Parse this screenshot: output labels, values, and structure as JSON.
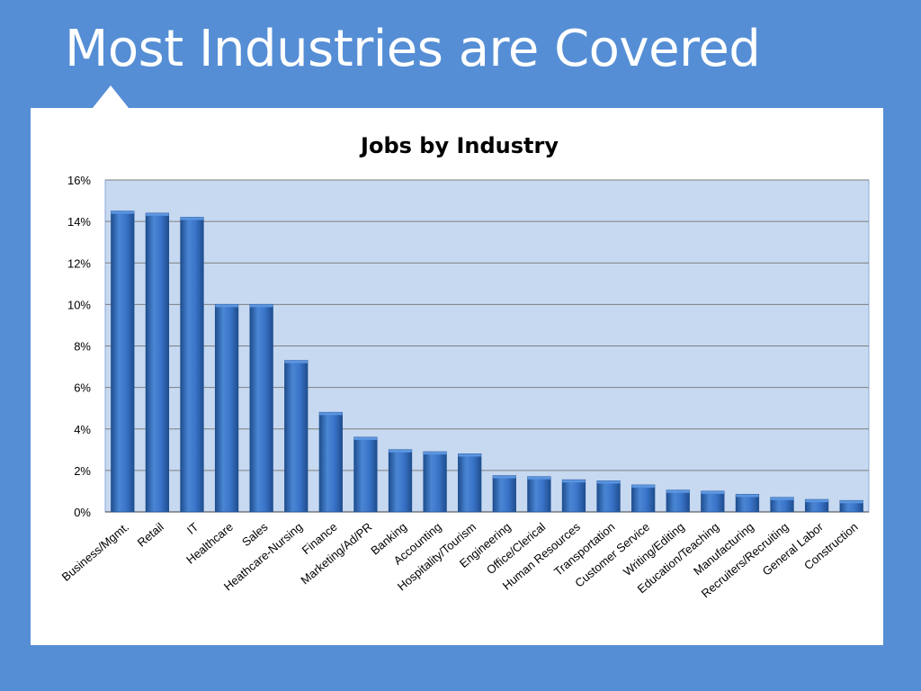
{
  "slide": {
    "title": "Most Industries are Covered"
  },
  "colors": {
    "background": "#558ed5",
    "plot_area": "#c6d9f1",
    "bar": "#3a74c9",
    "bar_dark": "#1f4e8f",
    "grid": "#7f7f7f"
  },
  "chart_data": {
    "type": "bar",
    "title": "Jobs by Industry",
    "xlabel": "",
    "ylabel": "",
    "ylim": [
      0,
      16
    ],
    "yticks": [
      "0%",
      "2%",
      "4%",
      "6%",
      "8%",
      "10%",
      "12%",
      "14%",
      "16%"
    ],
    "grid": true,
    "legend": "none",
    "categories": [
      "Business/Mgmt.",
      "Retail",
      "IT",
      "Healthcare",
      "Sales",
      "Heathcare-Nursing",
      "Finance",
      "Marketing/Ad/PR",
      "Banking",
      "Accounting",
      "Hospitality/Tourism",
      "Engineering",
      "Office/Clerical",
      "Human Resources",
      "Transportation",
      "Customer Service",
      "Writing/Editing",
      "Education/Teaching",
      "Manufacturing",
      "Recruiters/Recruiting",
      "General Labor",
      "Construction"
    ],
    "values": [
      14.5,
      14.4,
      14.2,
      10.0,
      10.0,
      7.3,
      4.8,
      3.6,
      3.0,
      2.9,
      2.8,
      1.75,
      1.7,
      1.55,
      1.5,
      1.3,
      1.05,
      1.0,
      0.85,
      0.7,
      0.6,
      0.55
    ],
    "unit": "%"
  }
}
